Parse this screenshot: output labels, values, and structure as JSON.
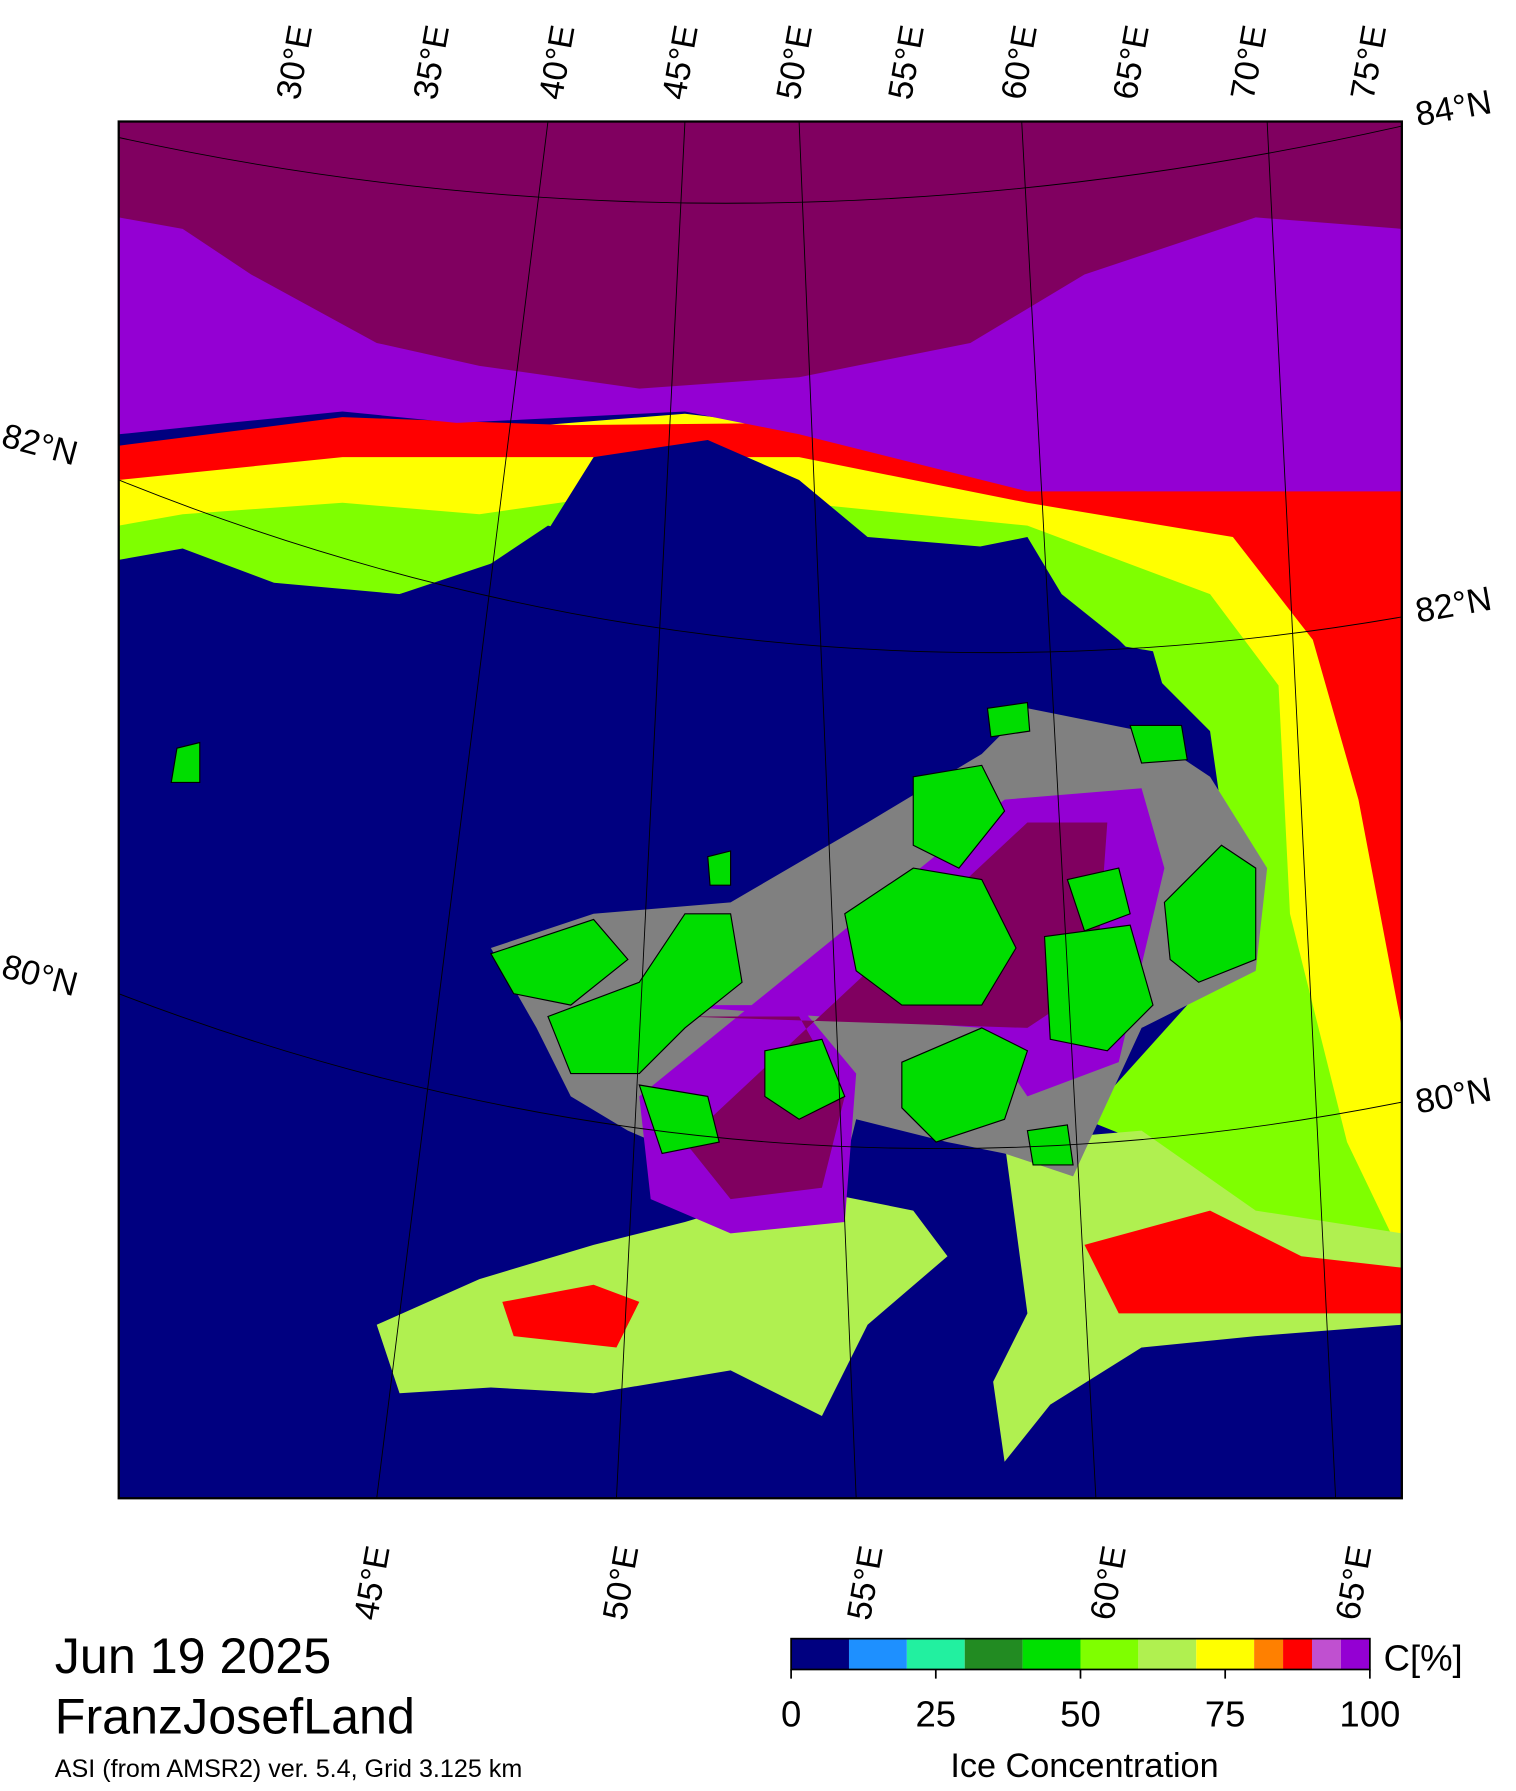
{
  "header": {
    "date": "Jun 19 2025",
    "region": "FranzJosefLand",
    "source": "ASI (from AMSR2) ver. 5.4,  Grid 3.125 km"
  },
  "map": {
    "top_longitude_labels": [
      "30°E",
      "35°E",
      "40°E",
      "45°E",
      "50°E",
      "55°E",
      "60°E",
      "65°E",
      "70°E",
      "75°E"
    ],
    "left_latitude_labels": [
      "82°N",
      "80°N"
    ],
    "right_latitude_labels": [
      "84°N",
      "82°N",
      "80°N"
    ],
    "bottom_longitude_labels": [
      "45°E",
      "50°E",
      "55°E",
      "60°E",
      "65°E"
    ]
  },
  "colorbar": {
    "bounds": [
      0,
      10,
      20,
      30,
      40,
      50,
      60,
      70,
      80,
      85,
      90,
      95,
      100
    ],
    "colors": [
      "#000080",
      "#1e90ff",
      "#22f0a0",
      "#228b22",
      "#00e000",
      "#7fff00",
      "#b0f050",
      "#ffff00",
      "#ff8000",
      "#ff0000",
      "#c050d0",
      "#9400d3"
    ],
    "ticks": [
      0,
      25,
      50,
      75,
      100
    ],
    "unit": "C[%]",
    "label": "Ice Concentration"
  }
}
